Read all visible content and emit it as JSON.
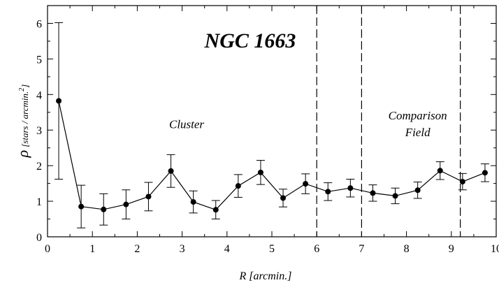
{
  "chart_data": {
    "type": "scatter",
    "title": "NGC 1663",
    "xlabel": "R [arcmin.]",
    "ylabel_symbol": "ρ",
    "ylabel_units": "[stars / arcmin.",
    "ylabel_sup": "2",
    "ylabel_close": "]",
    "xlim": [
      0,
      10
    ],
    "ylim": [
      0,
      6.5
    ],
    "x_ticks": [
      "0",
      "1",
      "2",
      "3",
      "4",
      "5",
      "6",
      "7",
      "8",
      "9",
      "10"
    ],
    "y_ticks": [
      "0",
      "1",
      "2",
      "3",
      "4",
      "5",
      "6"
    ],
    "grid": false,
    "series": [
      {
        "x": [
          0.25,
          0.75,
          1.25,
          1.75,
          2.25,
          2.75,
          3.25,
          3.75,
          4.25,
          4.75,
          5.25,
          5.75,
          6.25,
          6.75,
          7.25,
          7.75,
          8.25,
          8.75,
          9.25,
          9.75
        ],
        "y": [
          3.82,
          0.85,
          0.77,
          0.91,
          1.13,
          1.85,
          0.98,
          0.76,
          1.43,
          1.81,
          1.09,
          1.49,
          1.27,
          1.37,
          1.23,
          1.15,
          1.31,
          1.86,
          1.55,
          1.8
        ],
        "err": [
          2.2,
          0.6,
          0.44,
          0.41,
          0.4,
          0.46,
          0.31,
          0.26,
          0.32,
          0.34,
          0.25,
          0.28,
          0.25,
          0.25,
          0.23,
          0.22,
          0.23,
          0.25,
          0.23,
          0.25
        ]
      }
    ],
    "vlines": [
      6,
      7,
      9.2
    ],
    "annotations": [
      {
        "text": "Cluster",
        "x": 3.1,
        "y": 3.05
      },
      {
        "text": "Comparison",
        "x": 8.25,
        "y": 3.3
      },
      {
        "text": "Field",
        "x": 8.25,
        "y": 2.83
      }
    ]
  }
}
